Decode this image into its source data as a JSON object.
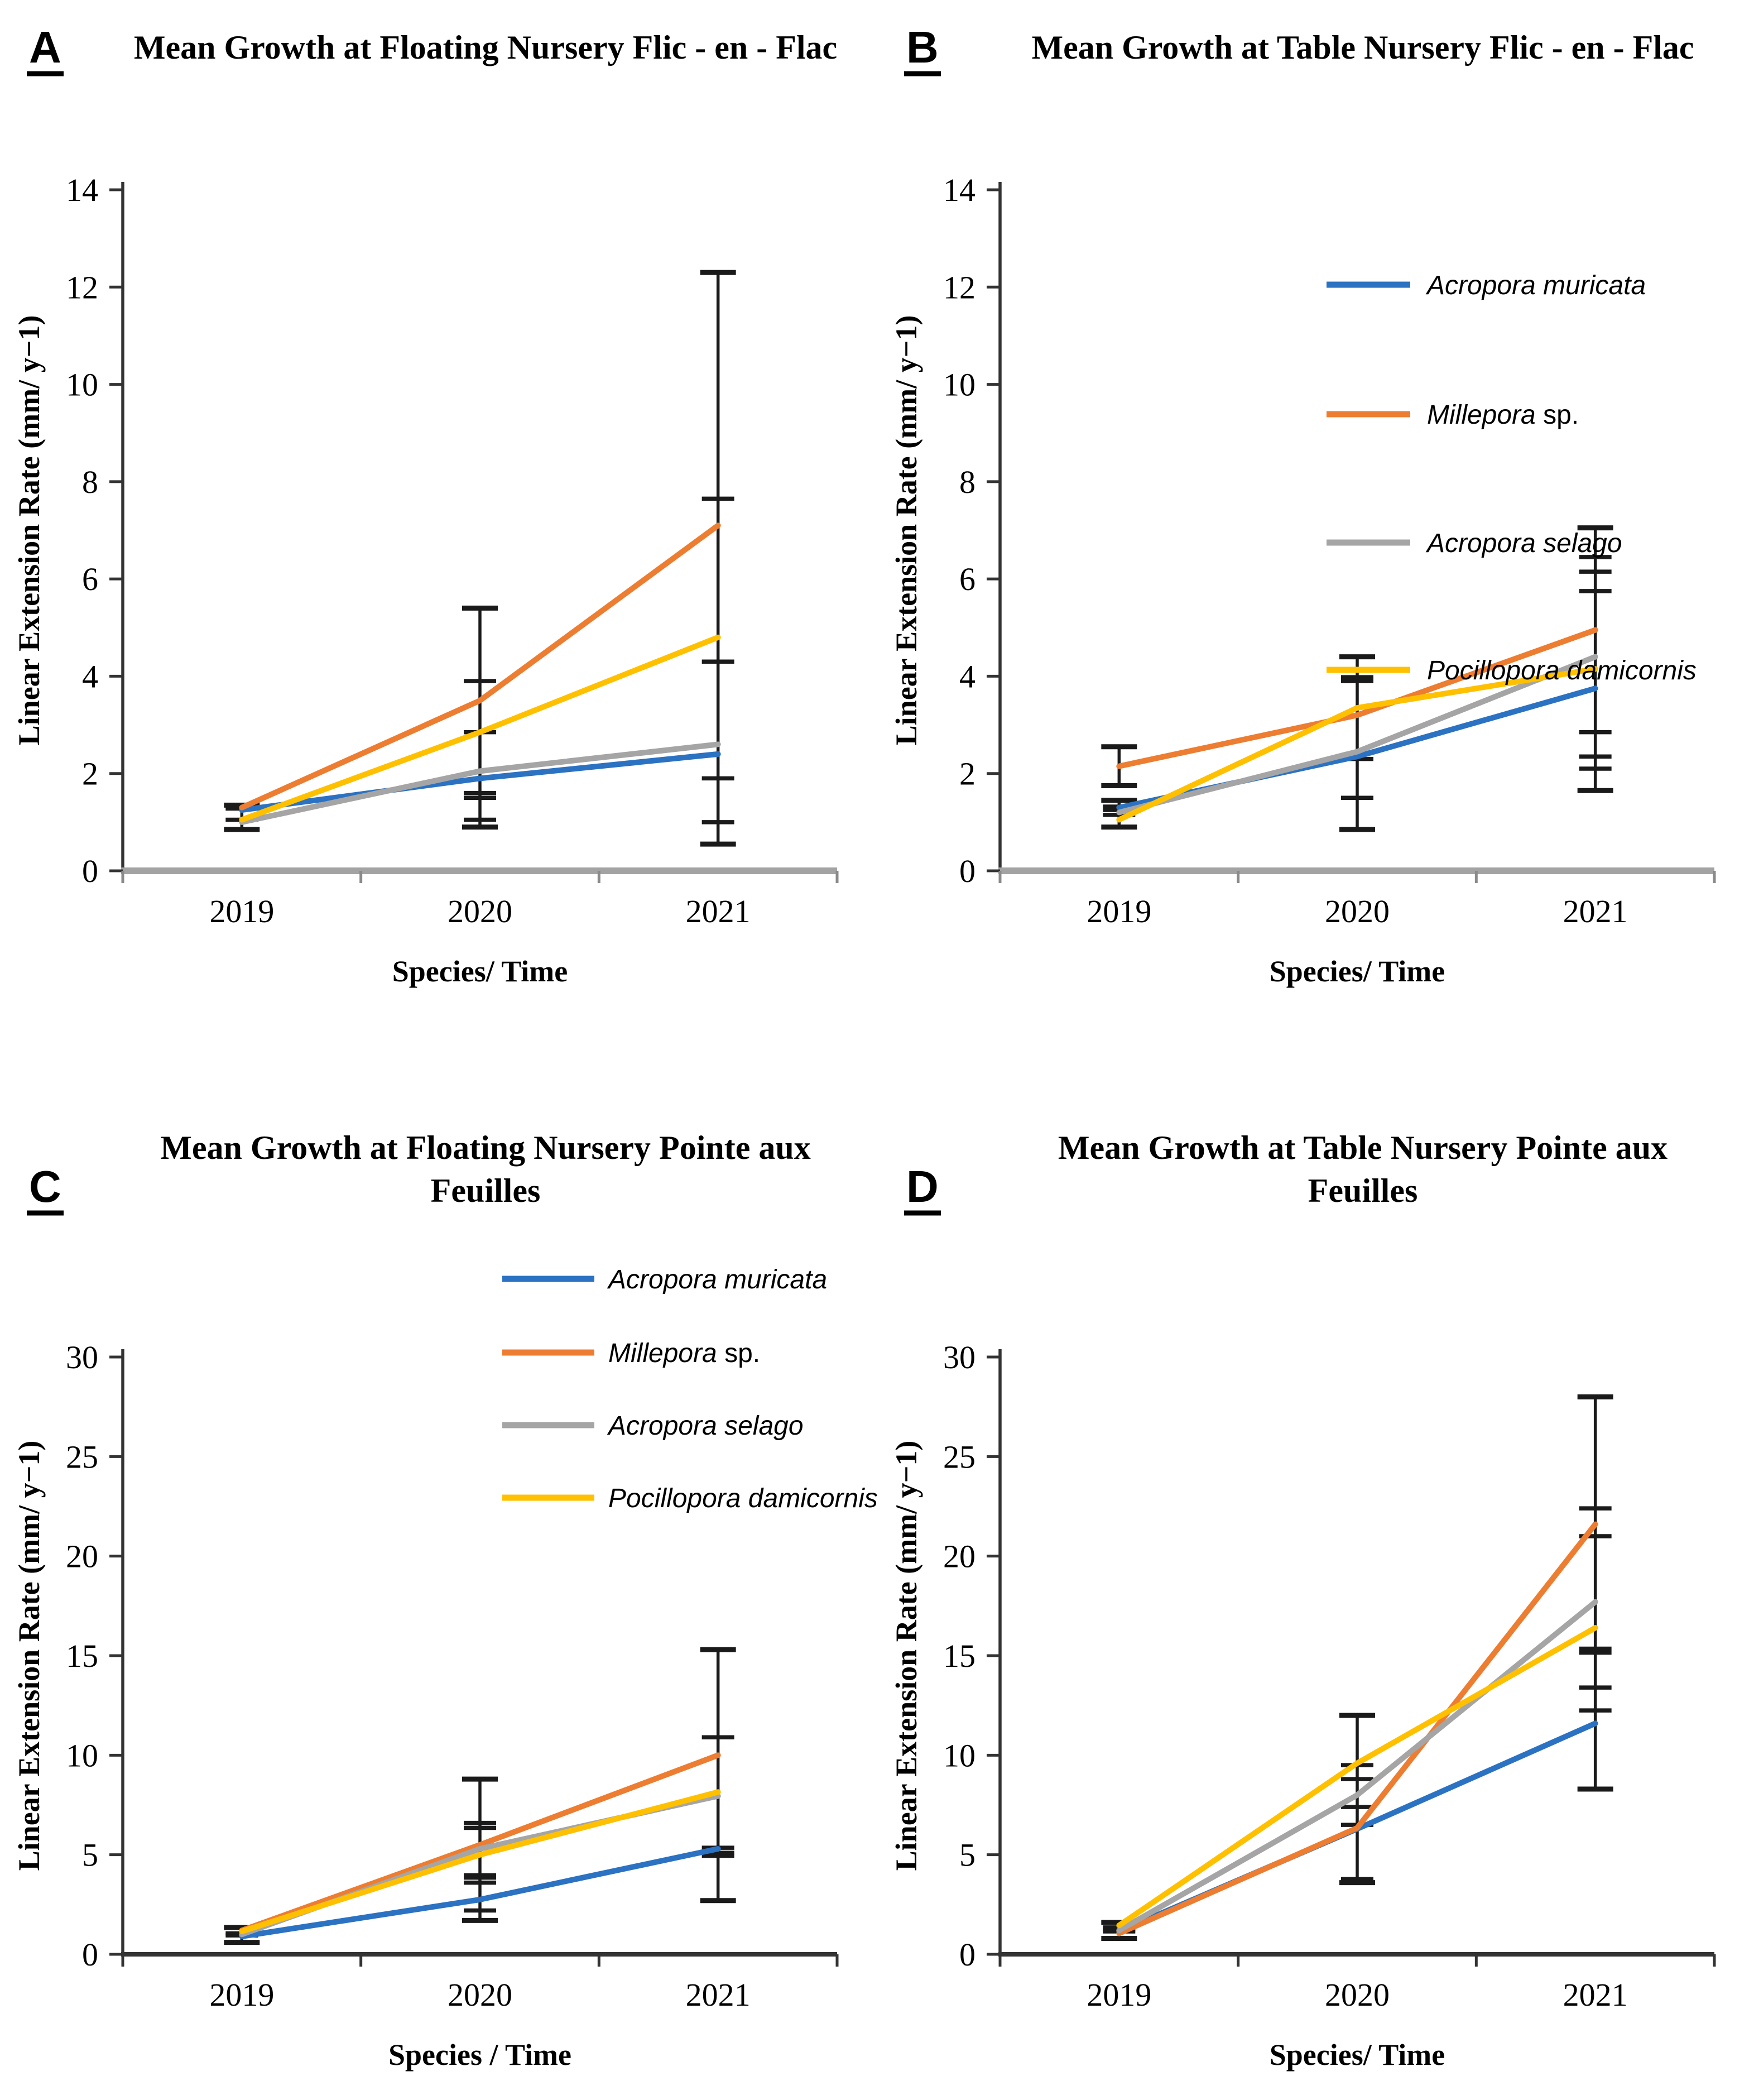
{
  "figure_background": "#ffffff",
  "colors": {
    "blue": "#2B72C2",
    "orange": "#ED7D31",
    "gray": "#A5A5A5",
    "yellow": "#FFC000",
    "error_bar": "#1A1A1A",
    "axis_dark": "#333333",
    "axis_light": "#A3A3A3",
    "text": "#000000"
  },
  "chart_data": [
    {
      "id": "A",
      "panel_label": "A",
      "type": "line",
      "title_lines": [
        "Mean Growth at Floating Nursery Flic - en - Flac"
      ],
      "ylabel": "Linear Extension Rate (mm/ y−1)",
      "xlabel": "Species/ Time",
      "categories": [
        "2019",
        "2020",
        "2021"
      ],
      "ylim": [
        0,
        14
      ],
      "yticks": [
        0,
        2,
        4,
        6,
        8,
        10,
        12,
        14
      ],
      "grid": false,
      "legend": false,
      "x_axis_style": "light",
      "series": [
        {
          "name": "Acropora muricata",
          "italic": "Acropora muricata",
          "roman": "",
          "color": "blue",
          "values": [
            1.25,
            1.9,
            2.4
          ]
        },
        {
          "name": "Millepora sp.",
          "italic": "Millepora",
          "roman": " sp.",
          "color": "orange",
          "values": [
            1.3,
            3.5,
            7.1
          ]
        },
        {
          "name": "Acropora selago",
          "italic": "Acropora selago",
          "roman": "",
          "color": "gray",
          "values": [
            1.0,
            2.05,
            2.6
          ]
        },
        {
          "name": "Pocillopora damicornis",
          "italic": "Pocillopora damicornis",
          "roman": "",
          "color": "yellow",
          "values": [
            1.05,
            2.85,
            4.8
          ]
        }
      ],
      "error_bars": [
        {
          "category": "2019",
          "segments": [
            {
              "lo": 0.85,
              "hi": 1.35,
              "ticks": [
                0.85,
                1.05,
                1.28,
                1.35
              ]
            }
          ]
        },
        {
          "category": "2020",
          "segments": [
            {
              "lo": 0.9,
              "hi": 5.4,
              "ticks": [
                0.9,
                1.05,
                1.5,
                1.6,
                2.85,
                3.9,
                5.4
              ]
            }
          ]
        },
        {
          "category": "2021",
          "segments": [
            {
              "lo": 0.55,
              "hi": 12.3,
              "ticks": [
                0.55,
                1.0,
                1.9,
                4.3,
                7.65,
                12.3
              ]
            }
          ]
        }
      ]
    },
    {
      "id": "B",
      "panel_label": "B",
      "type": "line",
      "title_lines": [
        "Mean Growth at Table Nursery Flic - en - Flac"
      ],
      "ylabel": "Linear Extension Rate (mm/ y−1)",
      "xlabel": "Species/ Time",
      "categories": [
        "2019",
        "2020",
        "2021"
      ],
      "ylim": [
        0,
        14
      ],
      "yticks": [
        0,
        2,
        4,
        6,
        8,
        10,
        12,
        14
      ],
      "grid": false,
      "legend": true,
      "x_axis_style": "light",
      "series": [
        {
          "name": "Acropora muricata",
          "italic": "Acropora muricata",
          "roman": "",
          "color": "blue",
          "values": [
            1.3,
            2.35,
            3.75
          ]
        },
        {
          "name": "Millepora sp.",
          "italic": "Millepora",
          "roman": " sp.",
          "color": "orange",
          "values": [
            2.15,
            3.2,
            4.95
          ]
        },
        {
          "name": "Acropora selago",
          "italic": "Acropora selago",
          "roman": "",
          "color": "gray",
          "values": [
            1.2,
            2.45,
            4.4
          ]
        },
        {
          "name": "Pocillopora damicornis",
          "italic": "Pocillopora damicornis",
          "roman": "",
          "color": "yellow",
          "values": [
            1.05,
            3.35,
            4.15
          ]
        }
      ],
      "error_bars": [
        {
          "category": "2019",
          "segments": [
            {
              "lo": 1.75,
              "hi": 2.55,
              "ticks": [
                1.75,
                2.55
              ]
            },
            {
              "lo": 0.9,
              "hi": 1.45,
              "ticks": [
                0.9,
                1.15,
                1.25,
                1.32,
                1.45
              ]
            }
          ]
        },
        {
          "category": "2020",
          "segments": [
            {
              "lo": 0.85,
              "hi": 4.4,
              "ticks": [
                0.85,
                1.5,
                2.3,
                3.9,
                3.98,
                4.4
              ]
            }
          ]
        },
        {
          "category": "2021",
          "segments": [
            {
              "lo": 1.65,
              "hi": 7.05,
              "ticks": [
                1.65,
                2.1,
                2.35,
                2.85,
                5.75,
                6.15,
                6.45,
                7.05
              ]
            }
          ]
        }
      ]
    },
    {
      "id": "C",
      "panel_label": "C",
      "type": "line",
      "title_lines": [
        "Mean Growth at Floating Nursery Pointe aux",
        "Feuilles"
      ],
      "ylabel": "Linear Extension Rate (mm/ y−1)",
      "xlabel": "Species / Time",
      "categories": [
        "2019",
        "2020",
        "2021"
      ],
      "ylim": [
        0,
        30
      ],
      "yticks": [
        0,
        5,
        10,
        15,
        20,
        25,
        30
      ],
      "grid": false,
      "legend": true,
      "x_axis_style": "dark",
      "series": [
        {
          "name": "Acropora muricata",
          "italic": "Acropora muricata",
          "roman": "",
          "color": "blue",
          "values": [
            0.9,
            2.75,
            5.3
          ]
        },
        {
          "name": "Millepora sp.",
          "italic": "Millepora",
          "roman": " sp.",
          "color": "orange",
          "values": [
            1.2,
            5.5,
            10.0
          ]
        },
        {
          "name": "Acropora selago",
          "italic": "Acropora selago",
          "roman": "",
          "color": "gray",
          "values": [
            1.0,
            5.3,
            7.95
          ]
        },
        {
          "name": "Pocillopora damicornis",
          "italic": "Pocillopora damicornis",
          "roman": "",
          "color": "yellow",
          "values": [
            1.15,
            5.0,
            8.15
          ]
        }
      ],
      "error_bars": [
        {
          "category": "2019",
          "segments": [
            {
              "lo": 0.6,
              "hi": 1.35,
              "ticks": [
                0.6,
                0.95,
                1.05,
                1.35
              ]
            }
          ]
        },
        {
          "category": "2020",
          "segments": [
            {
              "lo": 1.7,
              "hi": 8.8,
              "ticks": [
                1.7,
                2.2,
                3.6,
                3.85,
                3.97,
                6.35,
                6.6,
                8.8
              ]
            }
          ]
        },
        {
          "category": "2021",
          "segments": [
            {
              "lo": 2.7,
              "hi": 15.3,
              "ticks": [
                2.7,
                4.95,
                5.1,
                5.35,
                10.9,
                15.3
              ]
            }
          ]
        }
      ]
    },
    {
      "id": "D",
      "panel_label": "D",
      "type": "line",
      "title_lines": [
        "Mean Growth at Table Nursery Pointe aux",
        "Feuilles"
      ],
      "ylabel": "Linear Extension Rate (mm/ y−1)",
      "xlabel": "Species/ Time",
      "categories": [
        "2019",
        "2020",
        "2021"
      ],
      "ylim": [
        0,
        30
      ],
      "yticks": [
        0,
        5,
        10,
        15,
        20,
        25,
        30
      ],
      "grid": false,
      "legend": false,
      "x_axis_style": "dark",
      "series": [
        {
          "name": "Acropora muricata",
          "italic": "Acropora muricata",
          "roman": "",
          "color": "blue",
          "values": [
            1.15,
            6.3,
            11.6
          ]
        },
        {
          "name": "Millepora sp.",
          "italic": "Millepora",
          "roman": " sp.",
          "color": "orange",
          "values": [
            1.05,
            6.35,
            21.6
          ]
        },
        {
          "name": "Acropora selago",
          "italic": "Acropora selago",
          "roman": "",
          "color": "gray",
          "values": [
            1.2,
            8.0,
            17.7
          ]
        },
        {
          "name": "Pocillopora damicornis",
          "italic": "Pocillopora damicornis",
          "roman": "",
          "color": "yellow",
          "values": [
            1.45,
            9.6,
            16.4
          ]
        }
      ],
      "error_bars": [
        {
          "category": "2019",
          "segments": [
            {
              "lo": 0.8,
              "hi": 1.6,
              "ticks": [
                0.8,
                1.15,
                1.25,
                1.35,
                1.6
              ]
            }
          ]
        },
        {
          "category": "2020",
          "segments": [
            {
              "lo": 3.6,
              "hi": 12.0,
              "ticks": [
                3.6,
                3.78,
                6.5,
                7.4,
                8.8,
                9.5,
                12.0
              ]
            }
          ]
        },
        {
          "category": "2021",
          "segments": [
            {
              "lo": 8.3,
              "hi": 28.0,
              "ticks": [
                8.3,
                12.25,
                13.4,
                15.15,
                15.35,
                21.0,
                22.4,
                28.0
              ]
            }
          ]
        }
      ]
    }
  ]
}
